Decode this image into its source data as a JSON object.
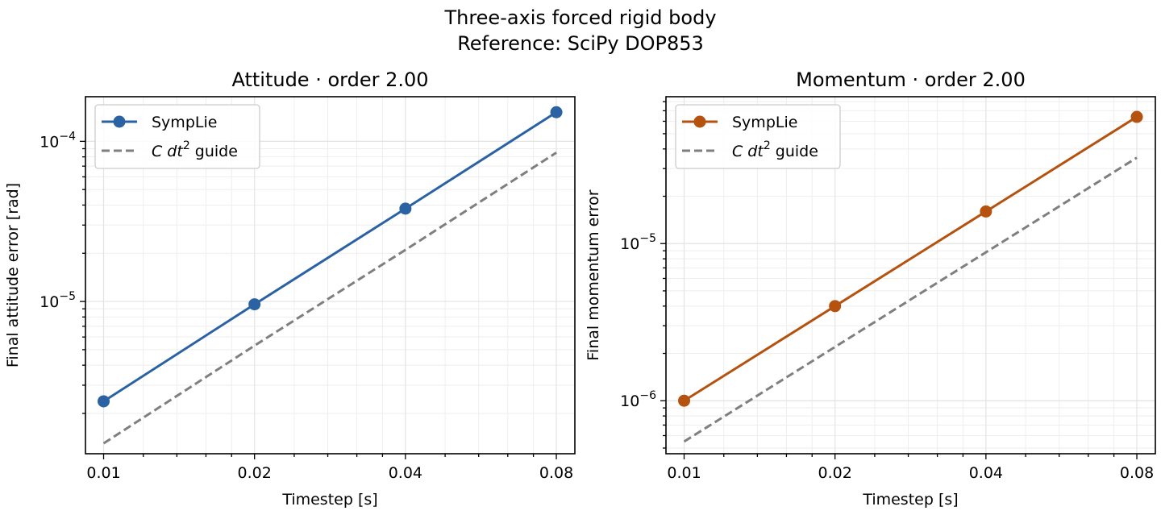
{
  "figure": {
    "suptitle_line1": "Three-axis forced rigid body",
    "suptitle_line2": "Reference: SciPy DOP853"
  },
  "chart_data": [
    {
      "type": "line",
      "title": "Attitude · order 2.00",
      "xlabel": "Timestep [s]",
      "ylabel": "Final attitude error [rad]",
      "x_scale": "log2",
      "y_scale": "log",
      "xlim": [
        0.0092,
        0.0871
      ],
      "ylim": [
        1.12e-06,
        0.00019
      ],
      "grid": true,
      "legend_position": "upper-left",
      "x": [
        0.01,
        0.02,
        0.04,
        0.08
      ],
      "x_tick_labels": [
        "0.01",
        "0.02",
        "0.04",
        "0.08"
      ],
      "y_ticks": [
        {
          "value": 1e-05,
          "base": "10",
          "exponent": "−5"
        },
        {
          "value": 0.0001,
          "base": "10",
          "exponent": "−4"
        }
      ],
      "series": [
        {
          "name": "SympLie",
          "values": [
            2.38e-06,
            9.6e-06,
            3.8e-05,
            0.000152
          ],
          "color": "#2a62a3",
          "style": "solid",
          "marker": "circle"
        },
        {
          "name": "C dt² guide",
          "values": [
            1.3e-06,
            5.3e-06,
            2.1e-05,
            8.5e-05
          ],
          "color": "#7f7f7f",
          "style": "dashed",
          "marker": "none"
        }
      ],
      "legend": {
        "entry1": "SympLie",
        "entry2_prefix": "C dt",
        "entry2_exponent": "2",
        "entry2_suffix": " guide"
      }
    },
    {
      "type": "line",
      "title": "Momentum · order 2.00",
      "xlabel": "Timestep [s]",
      "ylabel": "Final momentum error",
      "x_scale": "log2",
      "y_scale": "log",
      "xlim": [
        0.0092,
        0.0871
      ],
      "ylim": [
        4.6e-07,
        8.6e-05
      ],
      "grid": true,
      "legend_position": "upper-left",
      "x": [
        0.01,
        0.02,
        0.04,
        0.08
      ],
      "x_tick_labels": [
        "0.01",
        "0.02",
        "0.04",
        "0.08"
      ],
      "y_ticks": [
        {
          "value": 1e-06,
          "base": "10",
          "exponent": "−6"
        },
        {
          "value": 1e-05,
          "base": "10",
          "exponent": "−5"
        }
      ],
      "series": [
        {
          "name": "SympLie",
          "values": [
            1e-06,
            4e-06,
            1.6e-05,
            6.4e-05
          ],
          "color": "#b5520f",
          "style": "solid",
          "marker": "circle"
        },
        {
          "name": "C dt² guide",
          "values": [
            5.5e-07,
            2.2e-06,
            8.8e-06,
            3.52e-05
          ],
          "color": "#7f7f7f",
          "style": "dashed",
          "marker": "none"
        }
      ],
      "legend": {
        "entry1": "SympLie",
        "entry2_prefix": "C dt",
        "entry2_exponent": "2",
        "entry2_suffix": " guide"
      }
    }
  ]
}
